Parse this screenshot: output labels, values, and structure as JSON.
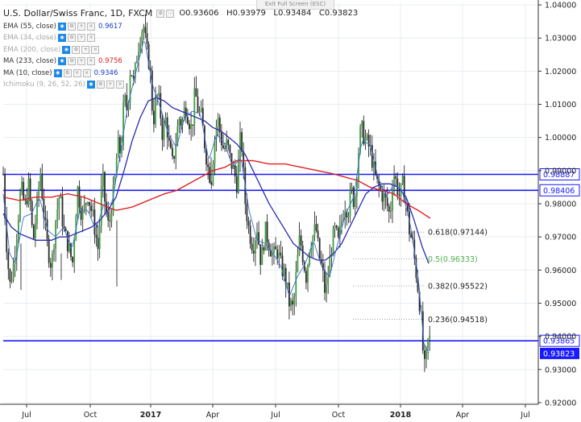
{
  "header": {
    "symbol": "U.S. Dollar/Swiss Franc, 1D, FXCM",
    "open": "O0.93606",
    "high": "H0.93979",
    "low": "L0.93484",
    "close": "C0.93823",
    "exit_fullscreen": "Exit Full Screen (ESC)"
  },
  "indicators": [
    {
      "label": "EMA (55, close)",
      "value": "0.9617",
      "value_color": "#1a3cc8",
      "faded": false
    },
    {
      "label": "EMA (34, close)",
      "value": "",
      "value_color": "#1a3cc8",
      "faded": true
    },
    {
      "label": "EMA (200, close)",
      "value": "",
      "value_color": "#1a3cc8",
      "faded": true
    },
    {
      "label": "MA (233, close)",
      "value": "0.9756",
      "value_color": "#e02020",
      "faded": false
    },
    {
      "label": "MA (10, close)",
      "value": "0.9346",
      "value_color": "#1a3cc8",
      "faded": false
    },
    {
      "label": "Ichimoku (9, 26, 52, 26)",
      "value": "",
      "value_color": "#1a3cc8",
      "faded": true
    }
  ],
  "chart_data": {
    "type": "candlestick",
    "y_ticks": [
      "1.04000",
      "1.03000",
      "1.02000",
      "1.01000",
      "1.00000",
      "0.99000",
      "0.98000",
      "0.97000",
      "0.96000",
      "0.95000",
      "0.94000",
      "0.93000",
      "0.92000"
    ],
    "x_ticks": [
      "Jul",
      "Oct",
      "2017",
      "Apr",
      "Jul",
      "Oct",
      "2018",
      "Apr",
      "Jul"
    ],
    "ylim": [
      0.9195,
      1.0405
    ],
    "horizontal_lines": [
      {
        "label": "0.98887",
        "value": 0.98887,
        "color": "#1a1aff"
      },
      {
        "label": "0.98406",
        "value": 0.98406,
        "color": "#1a1aff"
      },
      {
        "label": "0.93865",
        "value": 0.93865,
        "color": "#1a1aff"
      }
    ],
    "last_price": {
      "label": "0.93823",
      "value": 0.93823,
      "color": "#1a1aff"
    },
    "fibonacci": [
      {
        "label": "0.618(0.97144)",
        "value": 0.97144,
        "color": "#222222"
      },
      {
        "label": "0.5(0.96333)",
        "value": 0.96333,
        "color": "#4caf50"
      },
      {
        "label": "0.382(0.95522)",
        "value": 0.95522,
        "color": "#222222"
      },
      {
        "label": "0.236(0.94518)",
        "value": 0.94518,
        "color": "#222222"
      }
    ],
    "price_path": [
      [
        0,
        0.989
      ],
      [
        3,
        0.972
      ],
      [
        8,
        0.955
      ],
      [
        13,
        0.962
      ],
      [
        17,
        0.972
      ],
      [
        22,
        0.985
      ],
      [
        27,
        0.979
      ],
      [
        32,
        0.986
      ],
      [
        37,
        0.968
      ],
      [
        41,
        0.977
      ],
      [
        46,
        0.99
      ],
      [
        50,
        0.978
      ],
      [
        55,
        0.967
      ],
      [
        60,
        0.961
      ],
      [
        65,
        0.975
      ],
      [
        70,
        0.983
      ],
      [
        75,
        0.972
      ],
      [
        80,
        0.968
      ],
      [
        86,
        0.962
      ],
      [
        92,
        0.985
      ],
      [
        98,
        0.976
      ],
      [
        105,
        0.983
      ],
      [
        112,
        0.975
      ],
      [
        118,
        0.966
      ],
      [
        123,
        0.989
      ],
      [
        126,
        0.981
      ],
      [
        131,
        0.972
      ],
      [
        134,
        0.979
      ],
      [
        138,
        0.985
      ],
      [
        142,
        0.998
      ],
      [
        146,
        0.995
      ],
      [
        150,
        1.012
      ],
      [
        154,
        1.008
      ],
      [
        158,
        1.022
      ],
      [
        162,
        1.016
      ],
      [
        166,
        1.025
      ],
      [
        170,
        1.031
      ],
      [
        174,
        1.034
      ],
      [
        178,
        1.026
      ],
      [
        182,
        1.022
      ],
      [
        186,
        1.004
      ],
      [
        190,
        1.013
      ],
      [
        194,
        1.01
      ],
      [
        198,
        1.0
      ],
      [
        202,
        1.006
      ],
      [
        206,
        0.997
      ],
      [
        210,
        0.992
      ],
      [
        214,
        0.998
      ],
      [
        218,
        1.006
      ],
      [
        222,
        1.004
      ],
      [
        226,
        1.01
      ],
      [
        230,
        1.006
      ],
      [
        234,
        1.002
      ],
      [
        238,
        1.014
      ],
      [
        242,
        1.008
      ],
      [
        246,
        1.006
      ],
      [
        250,
        0.998
      ],
      [
        254,
        0.991
      ],
      [
        258,
        0.987
      ],
      [
        262,
        0.999
      ],
      [
        266,
        1.006
      ],
      [
        270,
        1.0
      ],
      [
        274,
        0.996
      ],
      [
        278,
        0.998
      ],
      [
        282,
        0.993
      ],
      [
        286,
        0.99
      ],
      [
        290,
        0.986
      ],
      [
        295,
        1.002
      ],
      [
        300,
        0.981
      ],
      [
        305,
        0.972
      ],
      [
        310,
        0.967
      ],
      [
        315,
        0.973
      ],
      [
        320,
        0.962
      ],
      [
        325,
        0.972
      ],
      [
        330,
        0.968
      ],
      [
        335,
        0.964
      ],
      [
        340,
        0.966
      ],
      [
        345,
        0.961
      ],
      [
        350,
        0.958
      ],
      [
        355,
        0.95
      ],
      [
        360,
        0.948
      ],
      [
        364,
        0.96
      ],
      [
        368,
        0.97
      ],
      [
        372,
        0.964
      ],
      [
        376,
        0.958
      ],
      [
        380,
        0.967
      ],
      [
        384,
        0.97
      ],
      [
        388,
        0.973
      ],
      [
        392,
        0.964
      ],
      [
        396,
        0.96
      ],
      [
        400,
        0.952
      ],
      [
        404,
        0.96
      ],
      [
        408,
        0.968
      ],
      [
        412,
        0.972
      ],
      [
        416,
        0.968
      ],
      [
        420,
        0.975
      ],
      [
        424,
        0.98
      ],
      [
        428,
        0.978
      ],
      [
        432,
        0.984
      ],
      [
        436,
        0.98
      ],
      [
        440,
        0.994
      ],
      [
        444,
        1.003
      ],
      [
        448,
        1.0
      ],
      [
        452,
        0.998
      ],
      [
        456,
        0.996
      ],
      [
        460,
        0.99
      ],
      [
        464,
        0.986
      ],
      [
        468,
        0.984
      ],
      [
        472,
        0.982
      ],
      [
        476,
        0.98
      ],
      [
        480,
        0.976
      ],
      [
        484,
        0.99
      ],
      [
        488,
        0.986
      ],
      [
        492,
        0.982
      ],
      [
        496,
        0.986
      ],
      [
        500,
        0.98
      ],
      [
        504,
        0.972
      ],
      [
        508,
        0.968
      ],
      [
        512,
        0.96
      ],
      [
        516,
        0.952
      ],
      [
        519,
        0.944
      ],
      [
        521,
        0.935
      ],
      [
        523,
        0.93
      ],
      [
        525,
        0.934
      ],
      [
        528,
        0.94
      ],
      [
        531,
        0.938
      ]
    ],
    "ema55_path": [
      [
        0,
        0.977
      ],
      [
        10,
        0.973
      ],
      [
        20,
        0.971
      ],
      [
        30,
        0.97
      ],
      [
        40,
        0.969
      ],
      [
        50,
        0.969
      ],
      [
        60,
        0.969
      ],
      [
        70,
        0.97
      ],
      [
        80,
        0.97
      ],
      [
        90,
        0.971
      ],
      [
        100,
        0.972
      ],
      [
        110,
        0.973
      ],
      [
        120,
        0.975
      ],
      [
        130,
        0.978
      ],
      [
        140,
        0.982
      ],
      [
        150,
        0.99
      ],
      [
        160,
        0.999
      ],
      [
        170,
        1.006
      ],
      [
        180,
        1.011
      ],
      [
        190,
        1.012
      ],
      [
        200,
        1.011
      ],
      [
        210,
        1.009
      ],
      [
        220,
        1.008
      ],
      [
        230,
        1.007
      ],
      [
        240,
        1.006
      ],
      [
        250,
        1.005
      ],
      [
        260,
        1.003
      ],
      [
        270,
        1.002
      ],
      [
        280,
        1.0
      ],
      [
        290,
        0.998
      ],
      [
        300,
        0.995
      ],
      [
        310,
        0.99
      ],
      [
        320,
        0.985
      ],
      [
        330,
        0.98
      ],
      [
        340,
        0.976
      ],
      [
        350,
        0.972
      ],
      [
        360,
        0.968
      ],
      [
        370,
        0.966
      ],
      [
        380,
        0.964
      ],
      [
        390,
        0.963
      ],
      [
        400,
        0.963
      ],
      [
        410,
        0.965
      ],
      [
        420,
        0.968
      ],
      [
        430,
        0.973
      ],
      [
        440,
        0.978
      ],
      [
        450,
        0.983
      ],
      [
        460,
        0.985
      ],
      [
        470,
        0.986
      ],
      [
        480,
        0.986
      ],
      [
        490,
        0.985
      ],
      [
        500,
        0.982
      ],
      [
        510,
        0.975
      ],
      [
        520,
        0.967
      ],
      [
        528,
        0.962
      ]
    ],
    "ma10_path": [
      [
        0,
        0.983
      ],
      [
        8,
        0.965
      ],
      [
        15,
        0.962
      ],
      [
        25,
        0.976
      ],
      [
        35,
        0.977
      ],
      [
        45,
        0.982
      ],
      [
        55,
        0.972
      ],
      [
        65,
        0.97
      ],
      [
        75,
        0.973
      ],
      [
        85,
        0.966
      ],
      [
        95,
        0.978
      ],
      [
        105,
        0.978
      ],
      [
        115,
        0.972
      ],
      [
        125,
        0.98
      ],
      [
        135,
        0.98
      ],
      [
        145,
        0.995
      ],
      [
        155,
        1.01
      ],
      [
        165,
        1.02
      ],
      [
        175,
        1.03
      ],
      [
        185,
        1.016
      ],
      [
        195,
        1.009
      ],
      [
        205,
        1.001
      ],
      [
        215,
        0.997
      ],
      [
        225,
        1.006
      ],
      [
        235,
        1.008
      ],
      [
        245,
        1.007
      ],
      [
        255,
        0.993
      ],
      [
        265,
        1.001
      ],
      [
        275,
        0.998
      ],
      [
        285,
        0.991
      ],
      [
        295,
        0.994
      ],
      [
        305,
        0.978
      ],
      [
        315,
        0.969
      ],
      [
        325,
        0.968
      ],
      [
        335,
        0.965
      ],
      [
        345,
        0.961
      ],
      [
        355,
        0.952
      ],
      [
        365,
        0.958
      ],
      [
        375,
        0.962
      ],
      [
        385,
        0.969
      ],
      [
        395,
        0.961
      ],
      [
        405,
        0.958
      ],
      [
        415,
        0.968
      ],
      [
        425,
        0.977
      ],
      [
        435,
        0.982
      ],
      [
        445,
        0.999
      ],
      [
        455,
        0.998
      ],
      [
        465,
        0.988
      ],
      [
        475,
        0.982
      ],
      [
        485,
        0.986
      ],
      [
        495,
        0.984
      ],
      [
        505,
        0.974
      ],
      [
        515,
        0.958
      ],
      [
        522,
        0.938
      ],
      [
        528,
        0.935
      ]
    ],
    "ma233_path": [
      [
        0,
        0.982
      ],
      [
        20,
        0.981
      ],
      [
        40,
        0.982
      ],
      [
        60,
        0.982
      ],
      [
        80,
        0.983
      ],
      [
        100,
        0.982
      ],
      [
        120,
        0.98
      ],
      [
        140,
        0.978
      ],
      [
        160,
        0.979
      ],
      [
        180,
        0.981
      ],
      [
        200,
        0.983
      ],
      [
        215,
        0.984
      ],
      [
        230,
        0.986
      ],
      [
        245,
        0.988
      ],
      [
        260,
        0.99
      ],
      [
        275,
        0.991
      ],
      [
        290,
        0.993
      ],
      [
        310,
        0.993
      ],
      [
        330,
        0.992
      ],
      [
        350,
        0.992
      ],
      [
        370,
        0.991
      ],
      [
        390,
        0.99
      ],
      [
        410,
        0.989
      ],
      [
        425,
        0.988
      ],
      [
        440,
        0.987
      ],
      [
        455,
        0.985
      ],
      [
        470,
        0.984
      ],
      [
        485,
        0.983
      ],
      [
        500,
        0.98
      ],
      [
        515,
        0.978
      ],
      [
        530,
        0.9756
      ]
    ]
  }
}
